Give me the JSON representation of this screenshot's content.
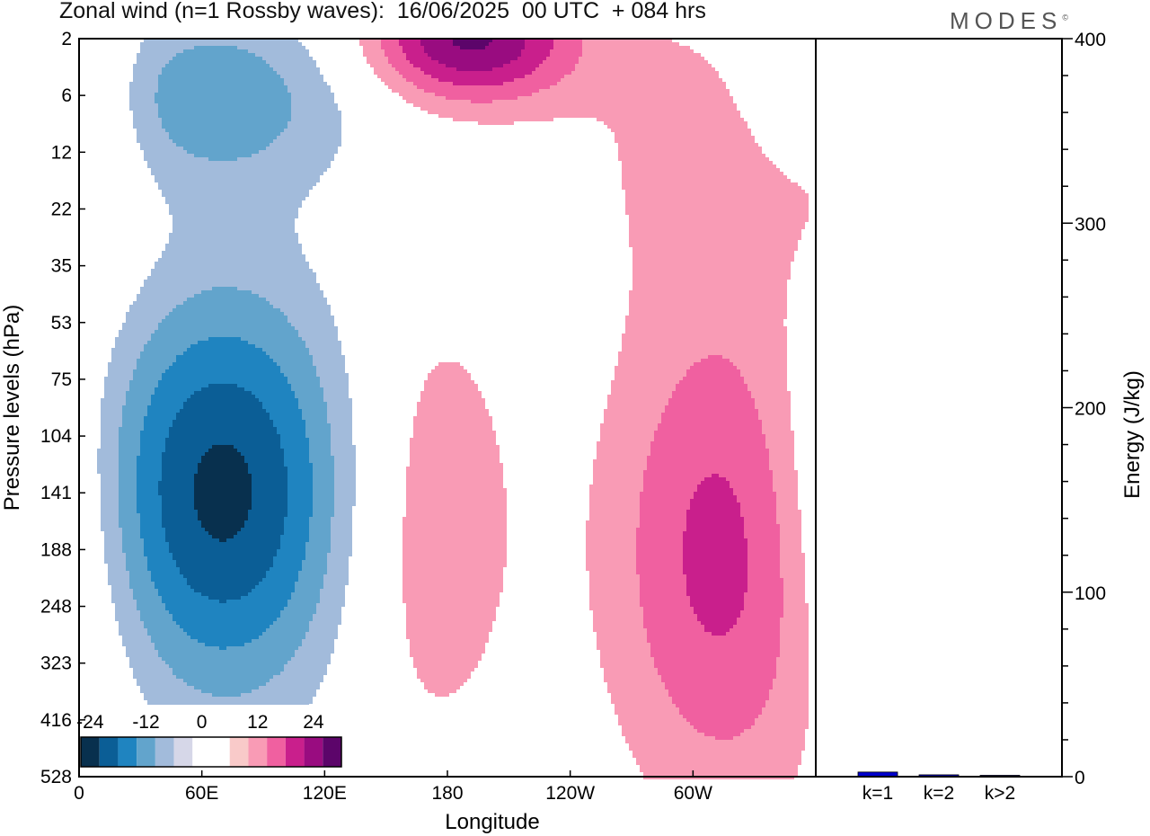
{
  "title": "Zonal wind (n=1 Rossby waves):  16/06/2025  00 UTC  + 084 hrs",
  "brand": "MODES",
  "brand_mark": "©",
  "colors": {
    "neg": [
      "#08304e",
      "#0b5e96",
      "#1f84c0",
      "#62a4cc",
      "#a2bbdb",
      "#d6d7e8"
    ],
    "zero": "#ffffff",
    "pos": [
      "#f9cac9",
      "#f99bb5",
      "#f060a0",
      "#c91f8c",
      "#990c80",
      "#5c056a"
    ],
    "energy_bar": "#0000cc"
  },
  "chart_data": [
    {
      "type": "heatmap",
      "title": "Zonal wind (n=1 Rossby waves):  16/06/2025  00 UTC  + 084 hrs",
      "xlabel": "Longitude",
      "ylabel": "Pressure levels (hPa)",
      "x_ticks": [
        "0",
        "60E",
        "120E",
        "180",
        "120W",
        "60W"
      ],
      "x_tick_values": [
        0,
        60,
        120,
        180,
        240,
        300
      ],
      "xlim": [
        0,
        360
      ],
      "y_ticks": [
        "2",
        "6",
        "12",
        "22",
        "35",
        "53",
        "75",
        "104",
        "141",
        "188",
        "248",
        "323",
        "416",
        "528"
      ],
      "colorbar_labels": [
        "-24",
        "-12",
        "0",
        "12",
        "24"
      ],
      "colorbar_levels": [
        -30,
        -25,
        -20,
        -15,
        -10,
        -5,
        0,
        5,
        10,
        15,
        20,
        25,
        30
      ],
      "features": [
        {
          "lon": 68,
          "level_index": 8.0,
          "sign": -1,
          "peak": 27,
          "sx": 48,
          "sy": 2.6
        },
        {
          "lon": 60,
          "level_index": 1.0,
          "sign": -1,
          "peak": 14,
          "sx": 55,
          "sy": 1.2
        },
        {
          "lon": 190,
          "level_index": 0.0,
          "sign": 1,
          "peak": 26,
          "sx": 36,
          "sy": 0.8
        },
        {
          "lon": 170,
          "level_index": 8.5,
          "sign": 1,
          "peak": 10,
          "sx": 32,
          "sy": 3.0
        },
        {
          "lon": 318,
          "level_index": 9.0,
          "sign": 1,
          "peak": 18,
          "sx": 42,
          "sy": 3.2
        },
        {
          "lon": 316,
          "level_index": 1.5,
          "sign": 1,
          "peak": 7,
          "sx": 55,
          "sy": 2.0
        },
        {
          "lon": 10,
          "level_index": 1.0,
          "sign": 1,
          "peak": 6,
          "sx": 15,
          "sy": 1.8
        },
        {
          "lon": 240,
          "level_index": 12.8,
          "sign": -1,
          "peak": 6,
          "sx": 5,
          "sy": 0.8
        }
      ]
    },
    {
      "type": "bar",
      "categories": [
        "k=1",
        "k=2",
        "k>2"
      ],
      "values": [
        2.5,
        1.0,
        0.5
      ],
      "ylabel": "Energy (J/kg)",
      "ylim": [
        0,
        400
      ],
      "y_ticks": [
        0,
        100,
        200,
        300,
        400
      ]
    }
  ]
}
